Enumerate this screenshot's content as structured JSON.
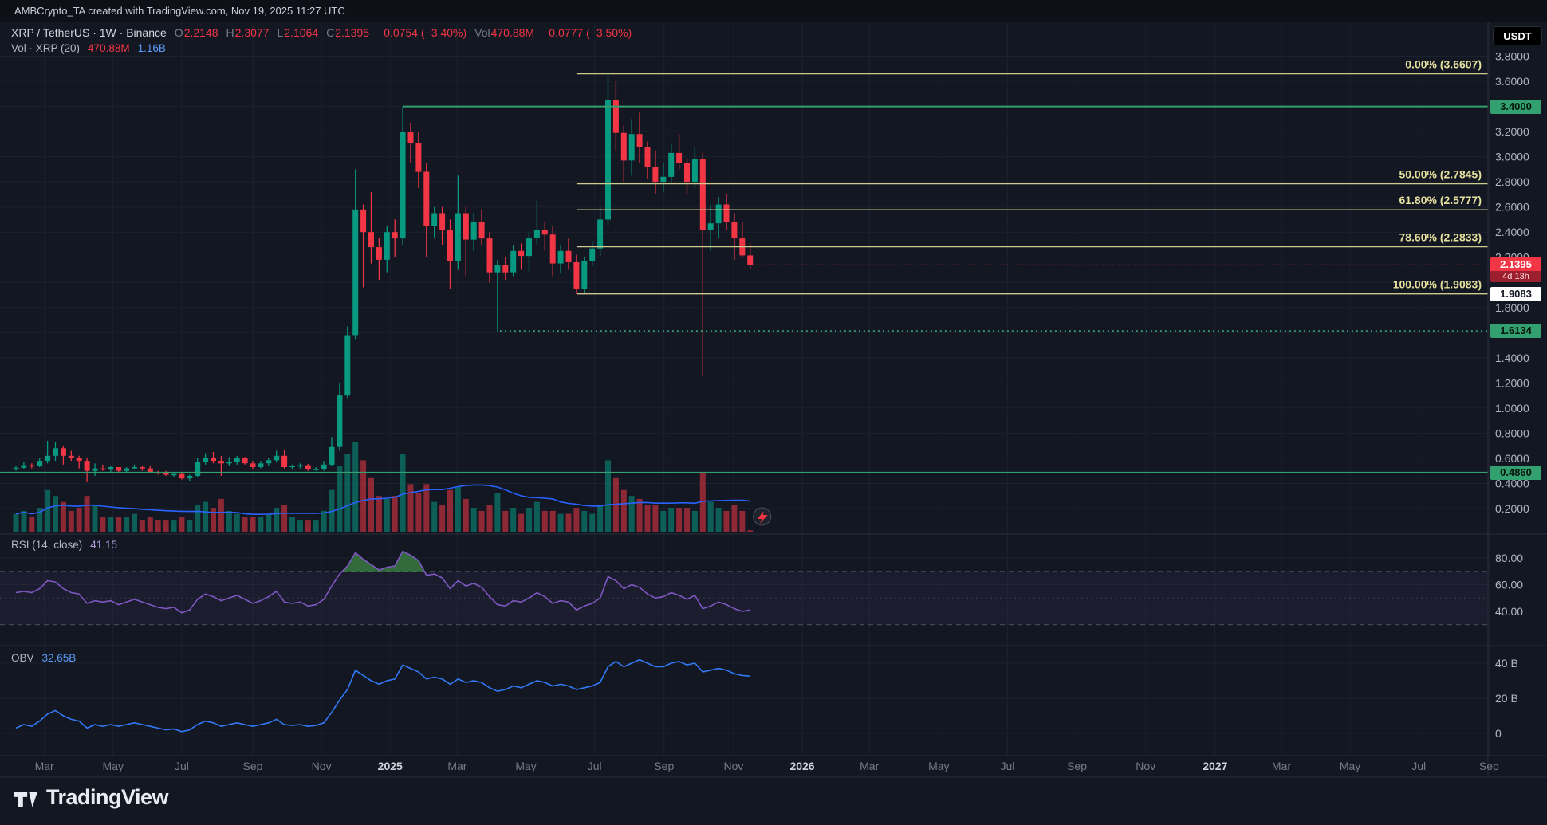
{
  "attribution": "AMBCrypto_TA created with TradingView.com, Nov 19, 2025 11:27 UTC",
  "header": {
    "title": "XRP / TetherUS · 1W · Binance",
    "o_label": "O",
    "o": "2.2148",
    "h_label": "H",
    "h": "2.3077",
    "l_label": "L",
    "l": "2.1064",
    "c_label": "C",
    "c": "2.1395",
    "change": "−0.0754 (−3.40%)",
    "vol_label": "Vol",
    "vol_value": "470.88M",
    "vol_change": "−0.0777 (−3.50%)"
  },
  "volume_indicator": {
    "label": "Vol · XRP (20)",
    "value": "470.88M",
    "ma_value": "1.16B"
  },
  "rsi_indicator": {
    "label": "RSI (14, close)",
    "value": "41.15"
  },
  "obv_indicator": {
    "label": "OBV",
    "value": "32.65B"
  },
  "currency_button": "USDT",
  "brand": {
    "name": "TradingView"
  },
  "colors": {
    "up": "#089981",
    "down": "#f23645",
    "ma": "#2962ff",
    "rsi": "#7e57c2",
    "obv": "#3179f5",
    "fib": "#cdc98f",
    "fib_text": "#e6e09e",
    "level_green": "#33a06f",
    "bg": "#131722",
    "grid": "#1c2130",
    "axis_text": "#b2b5be",
    "sep": "#2a2e39"
  },
  "chart_data": {
    "type": "candlestick",
    "symbol": "XRP/USDT",
    "interval": "1W",
    "exchange": "Binance",
    "start_week": "2024-02-05",
    "ylim": [
      0.2,
      3.8
    ],
    "candles": [
      [
        0.52,
        0.54,
        0.5,
        0.525,
        6
      ],
      [
        0.525,
        0.57,
        0.51,
        0.545,
        7
      ],
      [
        0.545,
        0.56,
        0.52,
        0.54,
        5
      ],
      [
        0.54,
        0.6,
        0.53,
        0.58,
        8
      ],
      [
        0.58,
        0.74,
        0.56,
        0.62,
        14
      ],
      [
        0.62,
        0.73,
        0.58,
        0.68,
        12
      ],
      [
        0.68,
        0.7,
        0.55,
        0.62,
        10
      ],
      [
        0.62,
        0.66,
        0.58,
        0.6,
        7
      ],
      [
        0.6,
        0.62,
        0.52,
        0.58,
        8
      ],
      [
        0.58,
        0.6,
        0.41,
        0.5,
        12
      ],
      [
        0.5,
        0.56,
        0.46,
        0.52,
        9
      ],
      [
        0.52,
        0.55,
        0.5,
        0.51,
        5
      ],
      [
        0.51,
        0.54,
        0.49,
        0.53,
        5
      ],
      [
        0.53,
        0.53,
        0.48,
        0.5,
        5
      ],
      [
        0.5,
        0.53,
        0.48,
        0.52,
        5
      ],
      [
        0.52,
        0.55,
        0.51,
        0.53,
        6
      ],
      [
        0.53,
        0.54,
        0.5,
        0.52,
        4
      ],
      [
        0.52,
        0.54,
        0.48,
        0.49,
        5
      ],
      [
        0.49,
        0.5,
        0.47,
        0.48,
        4
      ],
      [
        0.48,
        0.5,
        0.46,
        0.47,
        4
      ],
      [
        0.47,
        0.49,
        0.45,
        0.475,
        4
      ],
      [
        0.475,
        0.48,
        0.43,
        0.44,
        5
      ],
      [
        0.44,
        0.47,
        0.42,
        0.46,
        4
      ],
      [
        0.46,
        0.6,
        0.45,
        0.57,
        9
      ],
      [
        0.57,
        0.64,
        0.55,
        0.6,
        10
      ],
      [
        0.6,
        0.65,
        0.56,
        0.58,
        8
      ],
      [
        0.58,
        0.62,
        0.46,
        0.56,
        11
      ],
      [
        0.56,
        0.61,
        0.54,
        0.57,
        7
      ],
      [
        0.57,
        0.62,
        0.55,
        0.6,
        6
      ],
      [
        0.6,
        0.61,
        0.55,
        0.56,
        5
      ],
      [
        0.56,
        0.58,
        0.51,
        0.53,
        5
      ],
      [
        0.53,
        0.58,
        0.52,
        0.56,
        5
      ],
      [
        0.56,
        0.6,
        0.54,
        0.585,
        6
      ],
      [
        0.585,
        0.66,
        0.57,
        0.62,
        8
      ],
      [
        0.62,
        0.665,
        0.52,
        0.53,
        9
      ],
      [
        0.53,
        0.55,
        0.51,
        0.54,
        5
      ],
      [
        0.54,
        0.56,
        0.52,
        0.545,
        4
      ],
      [
        0.545,
        0.555,
        0.5,
        0.51,
        4
      ],
      [
        0.51,
        0.53,
        0.5,
        0.515,
        4
      ],
      [
        0.515,
        0.58,
        0.5,
        0.55,
        7
      ],
      [
        0.55,
        0.77,
        0.54,
        0.69,
        14
      ],
      [
        0.69,
        1.2,
        0.66,
        1.1,
        22
      ],
      [
        1.1,
        1.65,
        1.08,
        1.58,
        26
      ],
      [
        1.58,
        2.9,
        1.55,
        2.58,
        30
      ],
      [
        2.58,
        2.62,
        1.96,
        2.4,
        24
      ],
      [
        2.4,
        2.72,
        2.15,
        2.28,
        18
      ],
      [
        2.28,
        2.35,
        2.02,
        2.18,
        12
      ],
      [
        2.18,
        2.45,
        2.08,
        2.4,
        11
      ],
      [
        2.4,
        2.5,
        2.2,
        2.35,
        12
      ],
      [
        2.35,
        3.4,
        2.3,
        3.2,
        26
      ],
      [
        3.2,
        3.27,
        2.95,
        3.11,
        16
      ],
      [
        3.11,
        3.2,
        2.75,
        2.88,
        13
      ],
      [
        2.88,
        2.95,
        2.2,
        2.45,
        16
      ],
      [
        2.45,
        2.6,
        2.35,
        2.55,
        10
      ],
      [
        2.55,
        2.6,
        2.3,
        2.42,
        9
      ],
      [
        2.42,
        2.5,
        1.95,
        2.17,
        14
      ],
      [
        2.17,
        2.85,
        2.1,
        2.55,
        15
      ],
      [
        2.55,
        2.6,
        2.05,
        2.34,
        11
      ],
      [
        2.34,
        2.55,
        2.25,
        2.48,
        8
      ],
      [
        2.48,
        2.58,
        2.3,
        2.35,
        7
      ],
      [
        2.35,
        2.4,
        2.0,
        2.08,
        9
      ],
      [
        2.08,
        2.18,
        1.61,
        2.14,
        13
      ],
      [
        2.14,
        2.2,
        2.02,
        2.08,
        7
      ],
      [
        2.08,
        2.3,
        2.05,
        2.25,
        8
      ],
      [
        2.25,
        2.31,
        2.1,
        2.21,
        6
      ],
      [
        2.21,
        2.4,
        2.08,
        2.35,
        8
      ],
      [
        2.35,
        2.65,
        2.3,
        2.42,
        10
      ],
      [
        2.42,
        2.48,
        2.25,
        2.38,
        7
      ],
      [
        2.38,
        2.45,
        2.05,
        2.15,
        7
      ],
      [
        2.15,
        2.3,
        2.07,
        2.25,
        6
      ],
      [
        2.25,
        2.35,
        2.1,
        2.16,
        6
      ],
      [
        2.16,
        2.22,
        1.9083,
        1.95,
        8
      ],
      [
        1.95,
        2.2,
        1.91,
        2.17,
        7
      ],
      [
        2.17,
        2.33,
        2.13,
        2.27,
        6
      ],
      [
        2.27,
        2.6,
        2.21,
        2.5,
        9
      ],
      [
        2.5,
        3.6607,
        2.45,
        3.45,
        24
      ],
      [
        3.45,
        3.6,
        3.05,
        3.19,
        18
      ],
      [
        3.19,
        3.25,
        2.8,
        2.97,
        14
      ],
      [
        2.97,
        3.3,
        2.85,
        3.18,
        12
      ],
      [
        3.18,
        3.35,
        2.95,
        3.08,
        11
      ],
      [
        3.08,
        3.12,
        2.82,
        2.92,
        9
      ],
      [
        2.92,
        3.05,
        2.7,
        2.8,
        9
      ],
      [
        2.8,
        2.95,
        2.72,
        2.84,
        7
      ],
      [
        2.84,
        3.1,
        2.78,
        3.03,
        8
      ],
      [
        3.03,
        3.18,
        2.9,
        2.95,
        8
      ],
      [
        2.95,
        2.98,
        2.7,
        2.8,
        8
      ],
      [
        2.8,
        3.08,
        2.75,
        2.98,
        7
      ],
      [
        2.98,
        3.03,
        1.25,
        2.42,
        20
      ],
      [
        2.42,
        2.62,
        2.25,
        2.47,
        10
      ],
      [
        2.47,
        2.68,
        2.35,
        2.62,
        8
      ],
      [
        2.62,
        2.7,
        2.42,
        2.48,
        7
      ],
      [
        2.48,
        2.55,
        2.18,
        2.35,
        9
      ],
      [
        2.35,
        2.48,
        2.2,
        2.2148,
        7
      ],
      [
        2.2148,
        2.3077,
        2.1064,
        2.1395,
        0.47
      ]
    ],
    "rsi": [
      54,
      55,
      54,
      57,
      63,
      62,
      57,
      54,
      53,
      46,
      48,
      47,
      48,
      45,
      47,
      49,
      47,
      45,
      43,
      42,
      43,
      39,
      41,
      49,
      53,
      51,
      48,
      50,
      52,
      49,
      46,
      48,
      51,
      55,
      47,
      46,
      47,
      44,
      45,
      49,
      59,
      68,
      74,
      84,
      79,
      75,
      71,
      73,
      74,
      85,
      82,
      78,
      67,
      68,
      65,
      57,
      63,
      59,
      61,
      58,
      51,
      45,
      44,
      48,
      47,
      50,
      54,
      51,
      46,
      48,
      47,
      41,
      44,
      46,
      50,
      66,
      63,
      57,
      60,
      58,
      53,
      50,
      51,
      54,
      52,
      49,
      52,
      42,
      44,
      47,
      45,
      42,
      40,
      41.15
    ],
    "obv": [
      3,
      5,
      4,
      7,
      11,
      13,
      10,
      8,
      7,
      3,
      5,
      4,
      5,
      4,
      5,
      6,
      5,
      4,
      3,
      2,
      2.5,
      1,
      2,
      5,
      7,
      6,
      4,
      5,
      6,
      5,
      4,
      5,
      6,
      8,
      5,
      4.5,
      5,
      4,
      4.5,
      6,
      12,
      19,
      25,
      36,
      33,
      30,
      28,
      30,
      31,
      39,
      37,
      35,
      31,
      32,
      31,
      28,
      31,
      29,
      30,
      29,
      26,
      24,
      25,
      27,
      26,
      28,
      30,
      29,
      27,
      28,
      27,
      25,
      26,
      27,
      29,
      38,
      41,
      38,
      40,
      42,
      40,
      38,
      38,
      40,
      41,
      39,
      40,
      35,
      36,
      37,
      36,
      34,
      33,
      32.65
    ],
    "price_ticks": [
      3.8,
      3.6,
      3.2,
      3.0,
      2.8,
      2.6,
      2.4,
      2.2,
      1.8,
      1.4,
      1.2,
      1.0,
      0.8,
      0.6,
      0.4,
      0.2
    ],
    "levels": [
      {
        "price": 3.4,
        "label": "3.4000",
        "style": "solid",
        "start_week": 49
      },
      {
        "price": 1.6134,
        "label": "1.6134",
        "style": "dotted",
        "start_week": 61.3
      },
      {
        "price": 0.486,
        "label": "0.4860",
        "style": "solid",
        "start_week": -2
      }
    ],
    "fib": {
      "start_week": 71,
      "levels": [
        [
          "0.00%",
          "3.6607"
        ],
        [
          "50.00%",
          "2.7845"
        ],
        [
          "61.80%",
          "2.5777"
        ],
        [
          "78.60%",
          "2.2833"
        ],
        [
          "100.00%",
          "1.9083"
        ]
      ]
    },
    "last": {
      "price": 2.1395,
      "label": "2.1395",
      "countdown": "4d 13h"
    },
    "extra_axis_label": {
      "price": 1.9083,
      "label": "1.9083"
    },
    "rsi_scale": [
      80,
      60,
      40
    ],
    "rsi_bands": {
      "upper": 70,
      "lower": 30,
      "middle": 50
    },
    "obv_scale": [
      [
        40,
        "40 B"
      ],
      [
        20,
        "20 B"
      ],
      [
        0,
        "0"
      ]
    ],
    "time_axis": [
      {
        "label": "Mar",
        "week": 3.6
      },
      {
        "label": "May",
        "week": 12.3
      },
      {
        "label": "Jul",
        "week": 21
      },
      {
        "label": "Sep",
        "week": 30
      },
      {
        "label": "Nov",
        "week": 38.7
      },
      {
        "label": "2025",
        "week": 47.4,
        "year": true
      },
      {
        "label": "Mar",
        "week": 55.9
      },
      {
        "label": "May",
        "week": 64.6
      },
      {
        "label": "Jul",
        "week": 73.3
      },
      {
        "label": "Sep",
        "week": 82.1
      },
      {
        "label": "Nov",
        "week": 90.9
      },
      {
        "label": "2026",
        "week": 99.6,
        "year": true
      },
      {
        "label": "Mar",
        "week": 108.1
      },
      {
        "label": "May",
        "week": 116.9
      },
      {
        "label": "Jul",
        "week": 125.6
      },
      {
        "label": "Sep",
        "week": 134.4
      },
      {
        "label": "Nov",
        "week": 143.1
      },
      {
        "label": "2027",
        "week": 151.9,
        "year": true
      },
      {
        "label": "Mar",
        "week": 160.3
      },
      {
        "label": "May",
        "week": 169
      },
      {
        "label": "Jul",
        "week": 177.7
      },
      {
        "label": "Sep",
        "week": 186.6
      }
    ]
  }
}
